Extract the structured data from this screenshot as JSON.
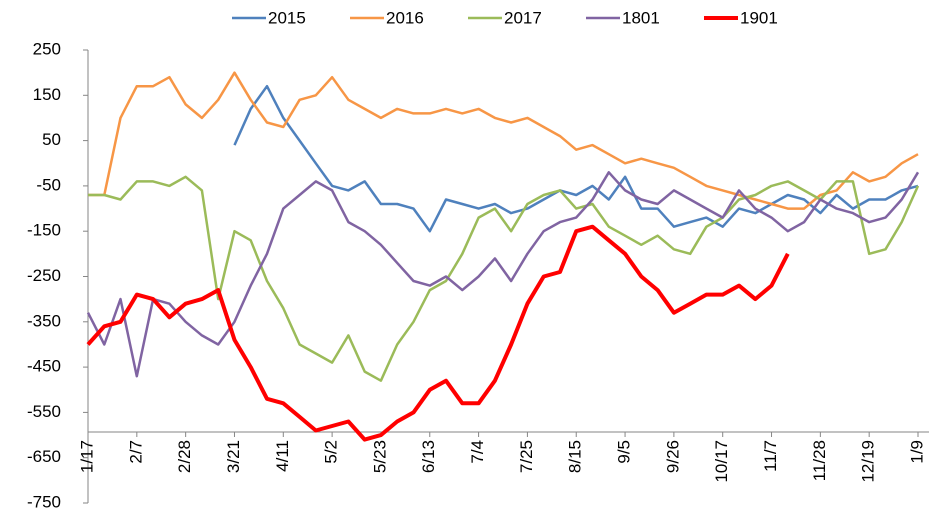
{
  "chart_data": {
    "type": "line",
    "categories": [
      "1/17",
      null,
      null,
      "2/7",
      null,
      null,
      "2/28",
      null,
      null,
      "3/21",
      null,
      null,
      "4/11",
      null,
      null,
      "5/2",
      null,
      null,
      "5/23",
      null,
      null,
      "6/13",
      null,
      null,
      "7/4",
      null,
      null,
      "7/25",
      null,
      null,
      "8/15",
      null,
      null,
      "9/5",
      null,
      null,
      "9/26",
      null,
      null,
      "10/17",
      null,
      null,
      "11/7",
      null,
      null,
      "11/28",
      null,
      null,
      "12/19",
      null,
      null,
      "1/9"
    ],
    "series": [
      {
        "name": "2015",
        "color": "#4f81bd",
        "values": [
          null,
          null,
          null,
          null,
          null,
          null,
          null,
          null,
          null,
          40,
          120,
          170,
          100,
          50,
          0,
          -50,
          -60,
          -40,
          -90,
          -90,
          -100,
          -150,
          -80,
          -90,
          -100,
          -90,
          -110,
          -100,
          -80,
          -60,
          -70,
          -50,
          -80,
          -30,
          -100,
          -100,
          -140,
          -130,
          -120,
          -140,
          -100,
          -110,
          -90,
          -70,
          -80,
          -110,
          -70,
          -100,
          -80,
          -80,
          -60,
          -50
        ]
      },
      {
        "name": "2016",
        "color": "#f79646",
        "values": [
          -70,
          -70,
          100,
          170,
          170,
          190,
          130,
          100,
          140,
          200,
          140,
          90,
          80,
          140,
          150,
          190,
          140,
          120,
          100,
          120,
          110,
          110,
          120,
          110,
          120,
          100,
          90,
          100,
          80,
          60,
          30,
          40,
          20,
          0,
          10,
          0,
          -10,
          -30,
          -50,
          -60,
          -70,
          -80,
          -90,
          -100,
          -100,
          -70,
          -60,
          -20,
          -40,
          -30,
          0,
          20
        ]
      },
      {
        "name": "2017",
        "color": "#9bbb59",
        "values": [
          -70,
          -70,
          -80,
          -40,
          -40,
          -50,
          -30,
          -60,
          -300,
          -150,
          -170,
          -260,
          -320,
          -400,
          -420,
          -440,
          -380,
          -460,
          -480,
          -400,
          -350,
          -280,
          -260,
          -200,
          -120,
          -100,
          -150,
          -90,
          -70,
          -60,
          -100,
          -90,
          -140,
          -160,
          -180,
          -160,
          -190,
          -200,
          -140,
          -120,
          -80,
          -70,
          -50,
          -40,
          -60,
          -80,
          -40,
          -40,
          -200,
          -190,
          -130,
          -50
        ]
      },
      {
        "name": "1801",
        "color": "#8064a2",
        "values": [
          -330,
          -400,
          -300,
          -470,
          -300,
          -310,
          -350,
          -380,
          -400,
          -350,
          -270,
          -200,
          -100,
          -70,
          -40,
          -60,
          -130,
          -150,
          -180,
          -220,
          -260,
          -270,
          -250,
          -280,
          -250,
          -210,
          -260,
          -200,
          -150,
          -130,
          -120,
          -80,
          -20,
          -60,
          -80,
          -90,
          -60,
          -80,
          -100,
          -120,
          -60,
          -100,
          -120,
          -150,
          -130,
          -80,
          -100,
          -110,
          -130,
          -120,
          -80,
          -20
        ]
      },
      {
        "name": "1901",
        "color": "#ff0000",
        "values": [
          -400,
          -360,
          -350,
          -290,
          -300,
          -340,
          -310,
          -300,
          -280,
          -390,
          -450,
          -520,
          -530,
          -560,
          -590,
          -580,
          -570,
          -610,
          -600,
          -570,
          -550,
          -500,
          -480,
          -530,
          -530,
          -480,
          -400,
          -310,
          -250,
          -240,
          -150,
          -140,
          -170,
          -200,
          -250,
          -280,
          -330,
          -310,
          -290,
          -290,
          -270,
          -300,
          -270,
          -200,
          null,
          null,
          null,
          null,
          null,
          null,
          null,
          null
        ]
      }
    ],
    "ylim": [
      -750,
      250
    ],
    "yticks": [
      -750,
      -650,
      -550,
      -450,
      -350,
      -250,
      -150,
      -50,
      50,
      150,
      250
    ]
  }
}
